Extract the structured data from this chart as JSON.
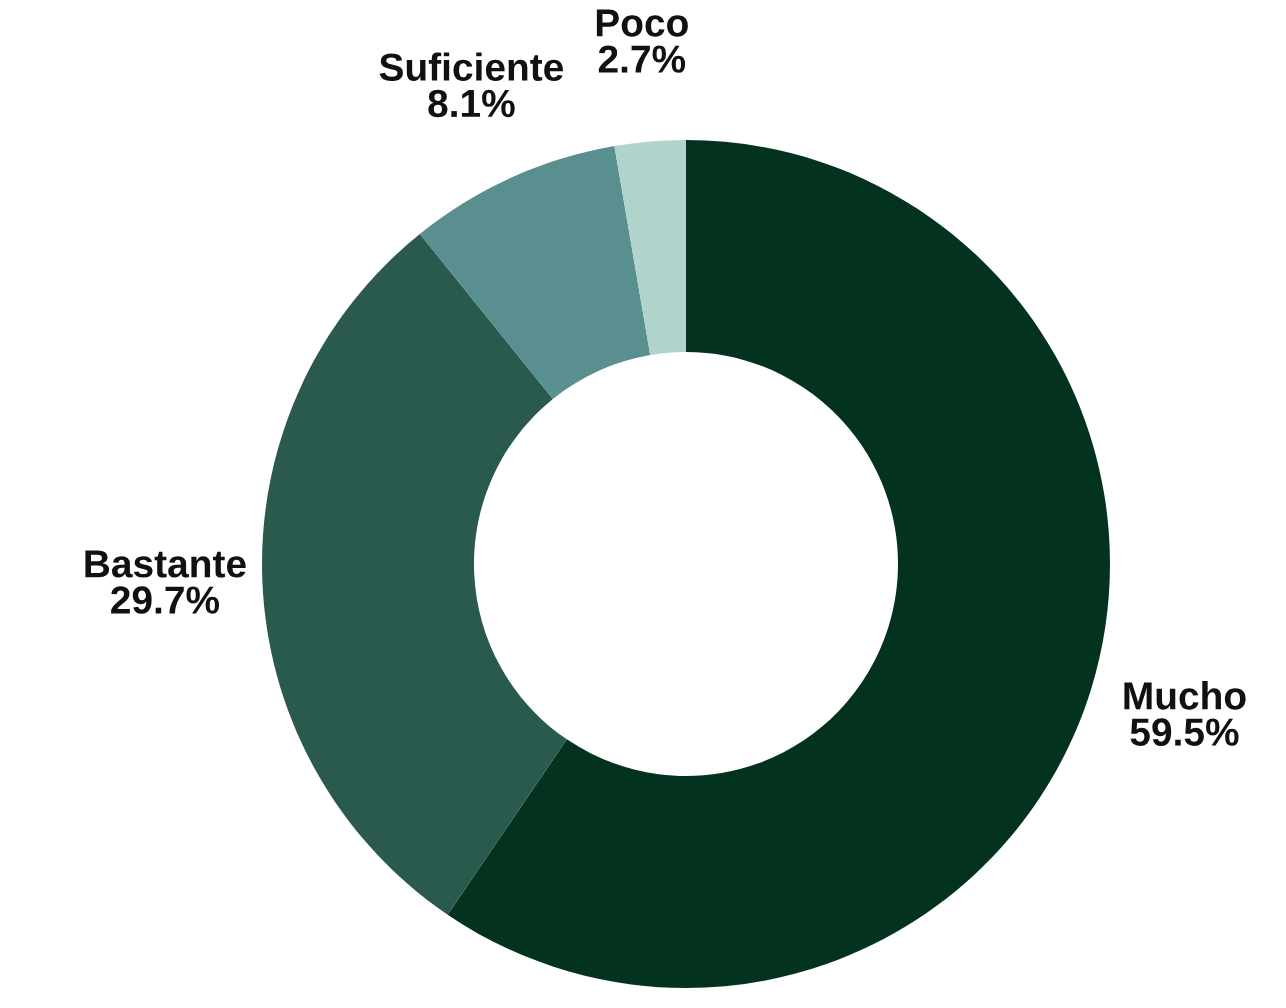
{
  "chart_data": {
    "type": "donut",
    "categories": [
      "Mucho",
      "Bastante",
      "Suficiente",
      "Poco"
    ],
    "values": [
      59.5,
      29.7,
      8.1,
      2.7
    ],
    "colors": [
      "#03331f",
      "#2a5a4e",
      "#5a8f8f",
      "#b0d4cc"
    ],
    "value_labels": [
      "59.5%",
      "29.7%",
      "8.1%",
      "2.7%"
    ],
    "legend": false
  }
}
